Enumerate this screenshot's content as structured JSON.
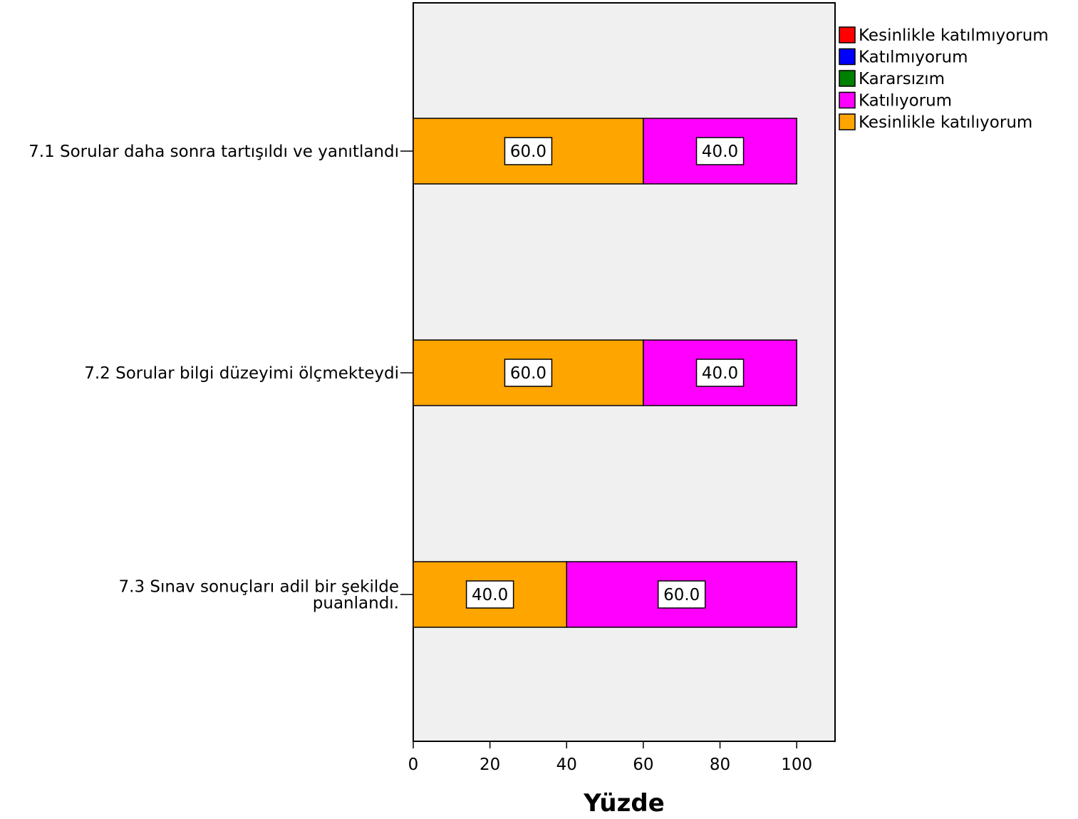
{
  "chart_data": {
    "type": "bar",
    "orientation": "horizontal",
    "stacked": true,
    "categories": [
      "7.1 Sorular daha sonra tartışıldı ve yanıtlandı",
      "7.2 Sorular bilgi düzeyimi ölçmekteydi",
      "7.3 Sınav sonuçları adil bir şekilde puanlandı."
    ],
    "series": [
      {
        "name": "Kesinlikle katılmıyorum",
        "color": "#ff0000",
        "values": [
          0,
          0,
          0
        ]
      },
      {
        "name": "Katılmıyorum",
        "color": "#0000ff",
        "values": [
          0,
          0,
          0
        ]
      },
      {
        "name": "Kararsızım",
        "color": "#008000",
        "values": [
          0,
          0,
          0
        ]
      },
      {
        "name": "Katılıyorum",
        "color": "#ff00ff",
        "values": [
          40,
          40,
          60
        ]
      },
      {
        "name": "Kesinlikle katılıyorum",
        "color": "#ffa500",
        "values": [
          60,
          60,
          40
        ]
      }
    ],
    "stack_order": [
      "Kesinlikle katılıyorum",
      "Katılıyorum"
    ],
    "data_labels": [
      {
        "category": 0,
        "series": "Kesinlikle katılıyorum",
        "text": "60.0"
      },
      {
        "category": 0,
        "series": "Katılıyorum",
        "text": "40.0"
      },
      {
        "category": 1,
        "series": "Kesinlikle katılıyorum",
        "text": "60.0"
      },
      {
        "category": 1,
        "series": "Katılıyorum",
        "text": "40.0"
      },
      {
        "category": 2,
        "series": "Kesinlikle katılıyorum",
        "text": "40.0"
      },
      {
        "category": 2,
        "series": "Katılıyorum",
        "text": "60.0"
      }
    ],
    "xlabel": "Yüzde",
    "xlim": [
      0,
      110
    ],
    "xticks": [
      0,
      20,
      40,
      60,
      80,
      100
    ],
    "legend_position": "top-right",
    "plot_background": "#f0f0f0",
    "grid": false
  }
}
